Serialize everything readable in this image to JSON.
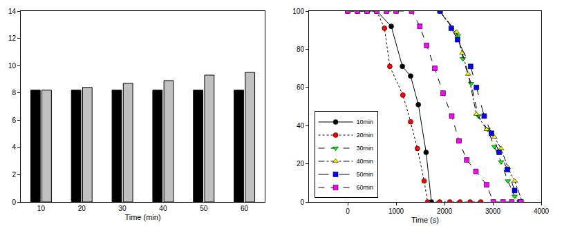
{
  "chart_data": [
    {
      "type": "bar",
      "x_label": "Time (min)",
      "categories": [
        "10",
        "20",
        "30",
        "40",
        "50",
        "60"
      ],
      "series": [
        {
          "color": "#000000",
          "values": [
            8.2,
            8.2,
            8.2,
            8.2,
            8.2,
            8.2
          ]
        },
        {
          "color": "#c0c0c0",
          "values": [
            8.2,
            8.4,
            8.7,
            8.9,
            9.3,
            9.5
          ]
        }
      ],
      "ylim": [
        0,
        14
      ],
      "yticks": [
        0,
        2,
        4,
        6,
        8,
        10,
        12,
        14
      ]
    },
    {
      "type": "line",
      "x_label": "Time (s)",
      "legend": "lower left",
      "xlim": [
        -800,
        4000
      ],
      "xticks": [
        0,
        1000,
        2000,
        3000,
        4000
      ],
      "ylim": [
        0,
        100
      ],
      "yticks": [
        0,
        20,
        40,
        60,
        80,
        100
      ],
      "series": [
        {
          "name": "10min",
          "color": "#000000",
          "marker": "circle",
          "line_style": "solid",
          "x": [
            0,
            200,
            400,
            600,
            900,
            1130,
            1300,
            1460,
            1620,
            1730
          ],
          "values": [
            100,
            100,
            100,
            100,
            92,
            71,
            66,
            51,
            26,
            0
          ]
        },
        {
          "name": "20min",
          "color": "#ff0000",
          "marker": "circle",
          "line_style": "dot",
          "x": [
            0,
            200,
            400,
            600,
            760,
            870,
            1140,
            1300,
            1440,
            1580,
            1650,
            1900,
            2110,
            2320,
            2530,
            2750
          ],
          "values": [
            100,
            100,
            100,
            100,
            91,
            71,
            56,
            42,
            28,
            11,
            0,
            0,
            0,
            0,
            0,
            0
          ]
        },
        {
          "name": "30min",
          "color": "#00ff00",
          "marker": "triangle-down",
          "line_style": "dash",
          "x": [
            1900,
            2280,
            2380,
            2550,
            2700,
            2890,
            3030,
            3170,
            3310,
            3450,
            3550
          ],
          "values": [
            100,
            87,
            75,
            62,
            45,
            38,
            29,
            21,
            11,
            3,
            0
          ]
        },
        {
          "name": "40min",
          "color": "#ffff00",
          "marker": "triangle-up",
          "line_style": "dashdot",
          "x": [
            1900,
            2250,
            2370,
            2490,
            2660,
            2870,
            3030,
            3170,
            3310,
            3450,
            3610
          ],
          "values": [
            100,
            89,
            78,
            67,
            46,
            38,
            34,
            28,
            18,
            11,
            0
          ]
        },
        {
          "name": "50min",
          "color": "#0000ff",
          "marker": "square",
          "line_style": "longdash",
          "x": [
            1910,
            2140,
            2270,
            2540,
            2660,
            2820,
            2970,
            3130,
            3300,
            3450,
            3560
          ],
          "values": [
            100,
            91,
            85,
            71,
            60,
            45,
            36,
            26,
            17,
            6,
            0
          ]
        },
        {
          "name": "60min",
          "color": "#ff00ff",
          "marker": "square",
          "line_style": "dash",
          "x": [
            0,
            200,
            400,
            600,
            800,
            1000,
            1320,
            1490,
            1630,
            1800,
            1970,
            2150,
            2300,
            2460,
            2650,
            2870,
            3010,
            3210,
            3390,
            3580
          ],
          "values": [
            100,
            100,
            100,
            100,
            100,
            100,
            100,
            92,
            82,
            70,
            57,
            45,
            32,
            22,
            16,
            9,
            0,
            0,
            0,
            0
          ]
        }
      ]
    }
  ]
}
